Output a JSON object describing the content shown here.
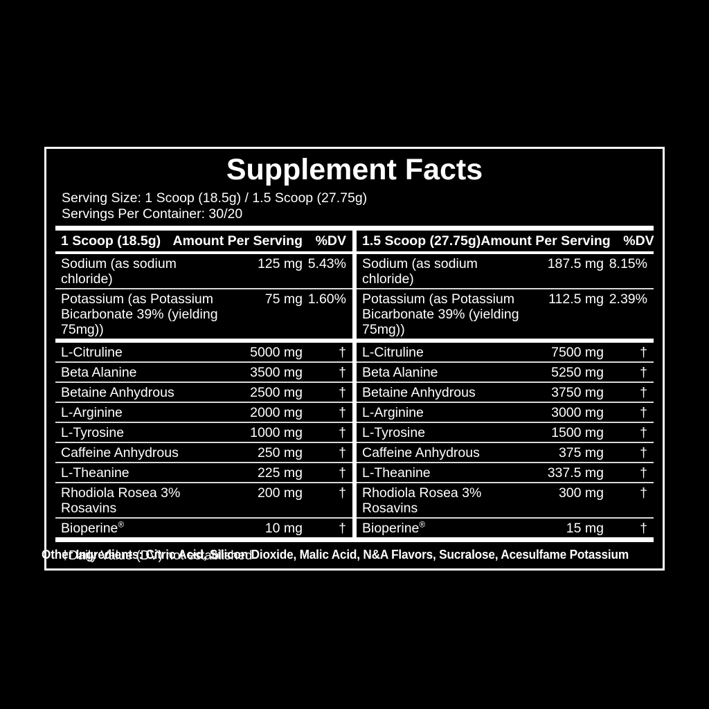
{
  "title": "Supplement Facts",
  "serving": {
    "size_line": "Serving Size: 1 Scoop (18.5g) / 1.5 Scoop (27.75g)",
    "servings_line": "Servings Per Container: 30/20"
  },
  "columns": [
    {
      "scoop_label": "1 Scoop (18.5g)",
      "amount_header": "Amount Per Serving",
      "dv_header": "%DV",
      "minerals": [
        {
          "name": "Sodium (as sodium chloride)",
          "amount": "125 mg",
          "dv": "5.43%"
        },
        {
          "name": "Potassium (as Potassium",
          "name_line2": "Bicarbonate 39% (yielding 75mg))",
          "amount": "75 mg",
          "dv": "1.60%"
        }
      ],
      "ingredients": [
        {
          "name": "L-Citruline",
          "amount": "5000 mg",
          "dv": "†"
        },
        {
          "name": "Beta Alanine",
          "amount": "3500 mg",
          "dv": "†"
        },
        {
          "name": "Betaine Anhydrous",
          "amount": "2500 mg",
          "dv": "†"
        },
        {
          "name": "L-Arginine",
          "amount": "2000 mg",
          "dv": "†"
        },
        {
          "name": "L-Tyrosine",
          "amount": "1000 mg",
          "dv": "†"
        },
        {
          "name": "Caffeine Anhydrous",
          "amount": "250 mg",
          "dv": "†"
        },
        {
          "name": "L-Theanine",
          "amount": "225 mg",
          "dv": "†"
        },
        {
          "name": "Rhodiola Rosea 3%",
          "name_line2": "Rosavins",
          "amount": "200 mg",
          "dv": "†"
        },
        {
          "name": "Bioperine®",
          "amount": "10 mg",
          "dv": "†"
        }
      ]
    },
    {
      "scoop_label": "1.5 Scoop (27.75g)",
      "amount_header": "Amount Per Serving",
      "dv_header": "%DV",
      "minerals": [
        {
          "name": "Sodium (as sodium chloride)",
          "amount": "187.5 mg",
          "dv": "8.15%"
        },
        {
          "name": "Potassium (as Potassium",
          "name_line2": "Bicarbonate 39% (yielding 75mg))",
          "amount": "112.5 mg",
          "dv": "2.39%"
        }
      ],
      "ingredients": [
        {
          "name": "L-Citruline",
          "amount": "7500 mg",
          "dv": "†"
        },
        {
          "name": "Beta Alanine",
          "amount": "5250 mg",
          "dv": "†"
        },
        {
          "name": "Betaine Anhydrous",
          "amount": "3750 mg",
          "dv": "†"
        },
        {
          "name": "L-Arginine",
          "amount": "3000 mg",
          "dv": "†"
        },
        {
          "name": "L-Tyrosine",
          "amount": "1500 mg",
          "dv": "†"
        },
        {
          "name": "Caffeine Anhydrous",
          "amount": "375 mg",
          "dv": "†"
        },
        {
          "name": "L-Theanine",
          "amount": "337.5 mg",
          "dv": "†"
        },
        {
          "name": "Rhodiola Rosea 3%",
          "name_line2": "Rosavins",
          "amount": "300 mg",
          "dv": "†"
        },
        {
          "name": "Bioperine®",
          "amount": "15 mg",
          "dv": "†"
        }
      ]
    }
  ],
  "footnote": "†Daily Value (DV) not established",
  "other_ingredients": "Other Ingredients: Citric Acid, Silicon Dioxide, Malic Acid, N&A Flavors, Sucralose, Acesulfame Potassium",
  "colors": {
    "background": "#000000",
    "text": "#ffffff",
    "rule_thick": "#ffffff",
    "rule_thin": "#d9d9d9"
  }
}
